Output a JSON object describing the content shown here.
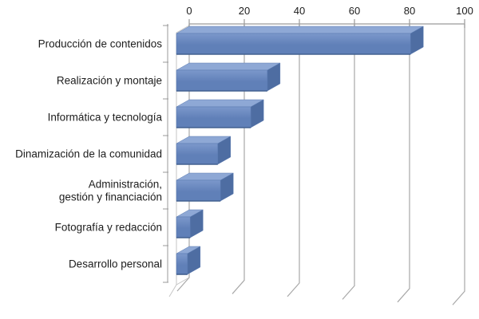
{
  "chart_data": {
    "type": "bar",
    "orientation": "horizontal",
    "style": "3d",
    "title": "",
    "categories": [
      "Producción de contenidos",
      "Realización y montaje",
      "Informática y tecnología",
      "Dinamización de la comunidad",
      "Administración,\ngestión y financiación",
      "Fotografía y redacción",
      "Desarrollo personal"
    ],
    "values": [
      85,
      33,
      27,
      15,
      16,
      5,
      4
    ],
    "xlabel": "",
    "ylabel": "",
    "xlim": [
      0,
      100
    ],
    "xticks": [
      0,
      20,
      40,
      60,
      80,
      100
    ],
    "x_axis_position": "top",
    "grid": true,
    "legend": false,
    "colors": {
      "bar_front_light": "#7c98cb",
      "bar_front_dark": "#6080b8",
      "bar_front_stroke": "#5c7cb2",
      "bar_bottom_edge": "#42608f",
      "bar_top_face": "#8ea8d5",
      "bar_side_face": "#4e6da2",
      "gridline": "#a8a8a8",
      "axis_line": "#9a9a9a",
      "wall_stroke": "#c6c6c6",
      "text": "#1d1d1d",
      "background": "#ffffff"
    }
  }
}
